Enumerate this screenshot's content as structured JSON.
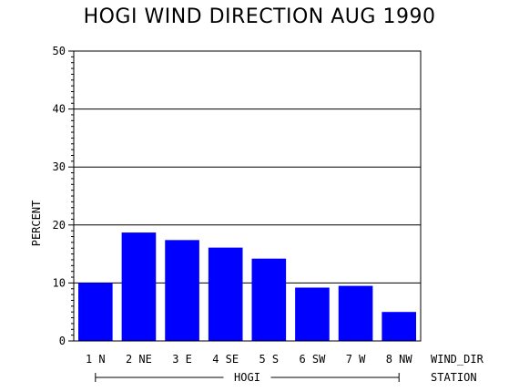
{
  "chart_data": {
    "type": "bar",
    "title": "HOGI WIND DIRECTION AUG 1990",
    "ylabel": "PERCENT",
    "xlabel": "WIND_DIR",
    "group_axis_label": "STATION",
    "group_label": "HOGI",
    "categories": [
      "1 N",
      "2 NE",
      "3 E",
      "4 SE",
      "5 S",
      "6 SW",
      "7 W",
      "8 NW"
    ],
    "values": [
      10,
      18.7,
      17.4,
      16.1,
      14.2,
      9.2,
      9.5,
      5.0
    ],
    "ylim": [
      0,
      50
    ],
    "yticks": [
      0,
      10,
      20,
      30,
      40,
      50
    ],
    "grid": true,
    "bar_color": "#0000ff"
  }
}
